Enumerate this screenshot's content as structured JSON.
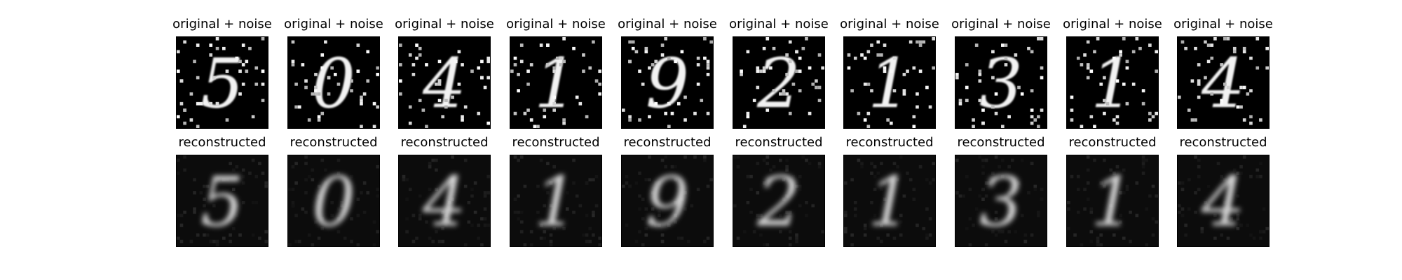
{
  "figure": {
    "rows": [
      {
        "title": "original + noise",
        "kind": "noisy",
        "digits": [
          "5",
          "0",
          "4",
          "1",
          "9",
          "2",
          "1",
          "3",
          "1",
          "4"
        ]
      },
      {
        "title": "reconstructed",
        "kind": "clean",
        "digits": [
          "5",
          "0",
          "4",
          "1",
          "9",
          "2",
          "1",
          "3",
          "1",
          "4"
        ]
      }
    ],
    "image_rendering": "grayscale",
    "background_color": "#000000",
    "digit_color": "#e8e8e8"
  }
}
